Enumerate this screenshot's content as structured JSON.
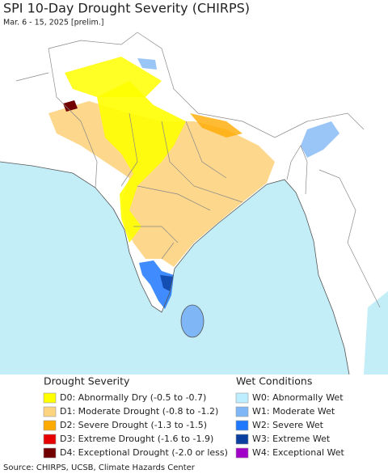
{
  "header": {
    "title": "SPI 10-Day Drought Severity (CHIRPS)",
    "subtitle": "Mar. 6 - 15, 2025 [prelim.]"
  },
  "legend": {
    "drought": {
      "title": "Drought Severity",
      "items": [
        {
          "label": "D0: Abnormally Dry (-0.5 to -0.7)",
          "color": "#ffff00"
        },
        {
          "label": "D1: Moderate Drought (-0.8 to -1.2)",
          "color": "#fcd37f"
        },
        {
          "label": "D2: Severe Drought (-1.3 to -1.5)",
          "color": "#ffaa00"
        },
        {
          "label": "D3: Extreme Drought (-1.6 to -1.9)",
          "color": "#e60000"
        },
        {
          "label": "D4: Exceptional Drought (-2.0 or less)",
          "color": "#730000"
        }
      ]
    },
    "wet": {
      "title": "Wet Conditions",
      "items": [
        {
          "label": "W0: Abnormally Wet",
          "color": "#bdeeff"
        },
        {
          "label": "W1: Moderate Wet",
          "color": "#7fb6f5"
        },
        {
          "label": "W2: Severe Wet",
          "color": "#1f78ff"
        },
        {
          "label": "W3: Extreme Wet",
          "color": "#0a3fa0"
        },
        {
          "label": "W4: Exceptional Wet",
          "color": "#a000c8"
        }
      ]
    }
  },
  "footer": {
    "source": "Source: CHIRPS, UCSB, Climate Hazards Center"
  }
}
